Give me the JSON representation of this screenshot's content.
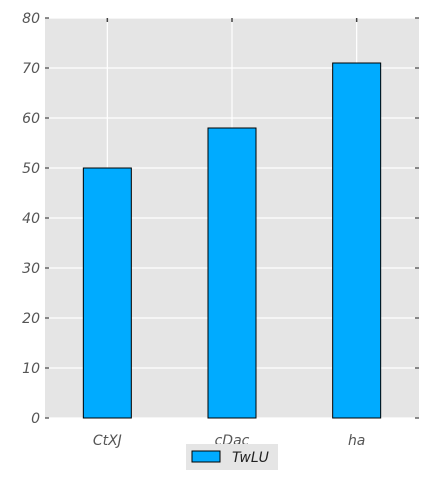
{
  "chart_data": {
    "type": "bar",
    "categories": [
      "CtXJ",
      "cDac",
      "ha"
    ],
    "series": [
      {
        "name": "TwLU",
        "values": [
          50,
          58,
          71
        ]
      }
    ],
    "ylim": [
      0,
      80
    ],
    "yticks": [
      0,
      10,
      20,
      30,
      40,
      50,
      60,
      70,
      80
    ],
    "grid": true,
    "legend_position": "bottom-center",
    "colors": {
      "bar_fill": "#00abff",
      "bar_edge": "#000000",
      "plot_background": "#e5e5e5",
      "grid": "#ffffff",
      "legend_background": "#e5e5e5"
    }
  }
}
